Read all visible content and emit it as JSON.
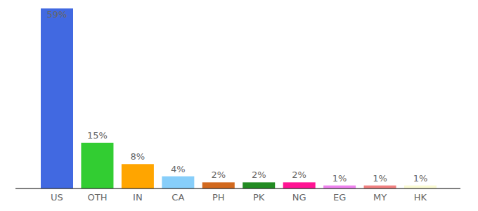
{
  "chart_data": {
    "type": "bar",
    "categories": [
      "US",
      "OTH",
      "IN",
      "CA",
      "PH",
      "PK",
      "NG",
      "EG",
      "MY",
      "HK"
    ],
    "values": [
      59,
      15,
      8,
      4,
      2,
      2,
      2,
      1,
      1,
      1
    ],
    "value_labels": [
      "59%",
      "15%",
      "8%",
      "4%",
      "2%",
      "2%",
      "2%",
      "1%",
      "1%",
      "1%"
    ],
    "colors": [
      "#4169e1",
      "#32cd32",
      "#ffa500",
      "#87cefa",
      "#d2691e",
      "#228b22",
      "#ff1493",
      "#ee82ee",
      "#f08080",
      "#fafad2"
    ],
    "ylim": [
      0,
      59
    ],
    "data_labels": true,
    "tick_labels": "x"
  }
}
